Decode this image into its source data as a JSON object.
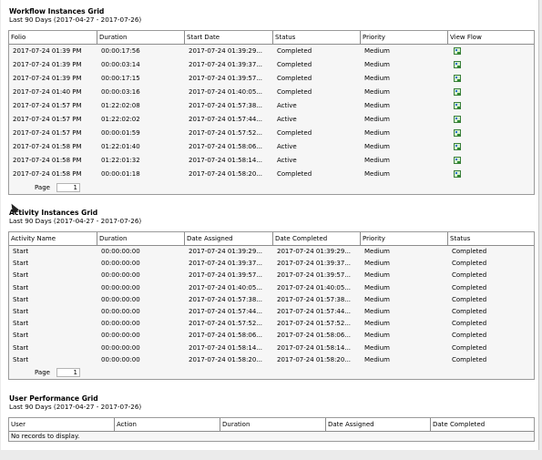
{
  "workflow": {
    "title": "Workflow Instances Grid",
    "subtitle": "Last 90 Days (2017-04-27 - 2017-07-26)",
    "columns": [
      "Folio",
      "Duration",
      "Start Date",
      "Status",
      "Priority",
      "View Flow"
    ],
    "rows": [
      [
        "2017-07-24 01:39 PM",
        "00:00:17:56",
        "2017-07-24 01:39:29...",
        "Completed",
        "Medium"
      ],
      [
        "2017-07-24 01:39 PM",
        "00:00:03:14",
        "2017-07-24 01:39:37...",
        "Completed",
        "Medium"
      ],
      [
        "2017-07-24 01:39 PM",
        "00:00:17:15",
        "2017-07-24 01:39:57...",
        "Completed",
        "Medium"
      ],
      [
        "2017-07-24 01:40 PM",
        "00:00:03:16",
        "2017-07-24 01:40:05...",
        "Completed",
        "Medium"
      ],
      [
        "2017-07-24 01:57 PM",
        "01:22:02:08",
        "2017-07-24 01:57:38...",
        "Active",
        "Medium"
      ],
      [
        "2017-07-24 01:57 PM",
        "01:22:02:02",
        "2017-07-24 01:57:44...",
        "Active",
        "Medium"
      ],
      [
        "2017-07-24 01:57 PM",
        "00:00:01:59",
        "2017-07-24 01:57:52...",
        "Completed",
        "Medium"
      ],
      [
        "2017-07-24 01:58 PM",
        "01:22:01:40",
        "2017-07-24 01:58:06...",
        "Active",
        "Medium"
      ],
      [
        "2017-07-24 01:58 PM",
        "01:22:01:32",
        "2017-07-24 01:58:14...",
        "Active",
        "Medium"
      ],
      [
        "2017-07-24 01:58 PM",
        "00:00:01:18",
        "2017-07-24 01:58:20...",
        "Completed",
        "Medium"
      ]
    ],
    "page_label": "Page",
    "page_value": "1"
  },
  "activity": {
    "title": "Activity Instances Grid",
    "subtitle": "Last 90 Days (2017-04-27 - 2017-07-26)",
    "columns": [
      "Activity Name",
      "Duration",
      "Date Assigned",
      "Date Completed",
      "Priority",
      "Status"
    ],
    "rows": [
      [
        "Start",
        "00:00:00:00",
        "2017-07-24 01:39:29...",
        "2017-07-24 01:39:29...",
        "Medium",
        "Completed"
      ],
      [
        "Start",
        "00:00:00:00",
        "2017-07-24 01:39:37...",
        "2017-07-24 01:39:37...",
        "Medium",
        "Completed"
      ],
      [
        "Start",
        "00:00:00:00",
        "2017-07-24 01:39:57...",
        "2017-07-24 01:39:57...",
        "Medium",
        "Completed"
      ],
      [
        "Start",
        "00:00:00:00",
        "2017-07-24 01:40:05...",
        "2017-07-24 01:40:05...",
        "Medium",
        "Completed"
      ],
      [
        "Start",
        "00:00:00:00",
        "2017-07-24 01:57:38...",
        "2017-07-24 01:57:38...",
        "Medium",
        "Completed"
      ],
      [
        "Start",
        "00:00:00:00",
        "2017-07-24 01:57:44...",
        "2017-07-24 01:57:44...",
        "Medium",
        "Completed"
      ],
      [
        "Start",
        "00:00:00:00",
        "2017-07-24 01:57:52...",
        "2017-07-24 01:57:52...",
        "Medium",
        "Completed"
      ],
      [
        "Start",
        "00:00:00:00",
        "2017-07-24 01:58:06...",
        "2017-07-24 01:58:06...",
        "Medium",
        "Completed"
      ],
      [
        "Start",
        "00:00:00:00",
        "2017-07-24 01:58:14...",
        "2017-07-24 01:58:14...",
        "Medium",
        "Completed"
      ],
      [
        "Start",
        "00:00:00:00",
        "2017-07-24 01:58:20...",
        "2017-07-24 01:58:20...",
        "Medium",
        "Completed"
      ]
    ],
    "page_label": "Page",
    "page_value": "1"
  },
  "user_performance": {
    "title": "User Performance Grid",
    "subtitle": "Last 90 Days (2017-04-27 - 2017-07-26)",
    "columns": [
      "User",
      "Action",
      "Duration",
      "Date Assigned",
      "Date Completed"
    ],
    "empty_text": "No records to display."
  },
  "icons": {
    "view_flow": "view-flow-icon",
    "cursor": "mouse-cursor-icon"
  }
}
